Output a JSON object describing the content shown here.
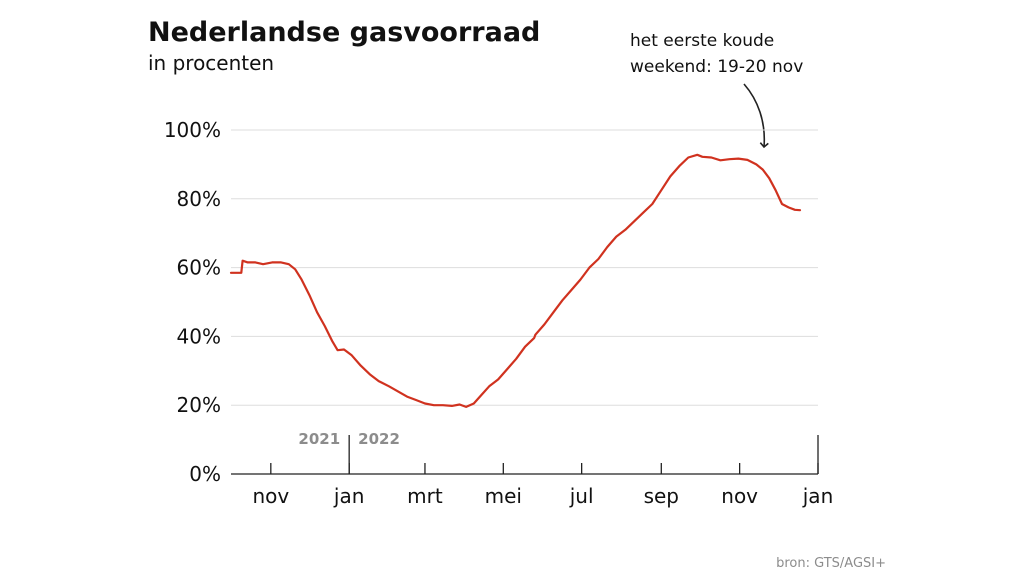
{
  "chart_data": {
    "type": "line",
    "title": "Nederlandse gasvoorraad",
    "subtitle": "in procenten",
    "annotation": {
      "lines": [
        "het eerste koude",
        "weekend: 19-20 nov"
      ],
      "target_x": "2022-11-19"
    },
    "source": "bron: GTS/AGSI+",
    "year_labels": {
      "left": "2021",
      "right": "2022"
    },
    "yticks": [
      {
        "value": 0,
        "label": "0%"
      },
      {
        "value": 20,
        "label": "20%"
      },
      {
        "value": 40,
        "label": "40%"
      },
      {
        "value": 60,
        "label": "60%"
      },
      {
        "value": 80,
        "label": "80%"
      },
      {
        "value": 100,
        "label": "100%"
      }
    ],
    "xticks": [
      {
        "date": "2021-11-01",
        "label": "nov"
      },
      {
        "date": "2022-01-01",
        "label": "jan"
      },
      {
        "date": "2022-03-01",
        "label": "mrt"
      },
      {
        "date": "2022-05-01",
        "label": "mei"
      },
      {
        "date": "2022-07-01",
        "label": "jul"
      },
      {
        "date": "2022-09-01",
        "label": "sep"
      },
      {
        "date": "2022-11-01",
        "label": "nov"
      },
      {
        "date": "2023-01-01",
        "label": "jan"
      }
    ],
    "xlim": [
      "2021-10-01",
      "2023-01-01"
    ],
    "ylim": [
      0,
      100
    ],
    "grid": true,
    "series": [
      {
        "color": "#d0321f",
        "points": [
          [
            "2021-10-01",
            58.5
          ],
          [
            "2021-10-09",
            58.5
          ],
          [
            "2021-10-10",
            62
          ],
          [
            "2021-10-14",
            61.5
          ],
          [
            "2021-10-20",
            61.5
          ],
          [
            "2021-10-26",
            61
          ],
          [
            "2021-11-02",
            61.5
          ],
          [
            "2021-11-09",
            61.5
          ],
          [
            "2021-11-15",
            61
          ],
          [
            "2021-11-20",
            59.5
          ],
          [
            "2021-11-25",
            56.5
          ],
          [
            "2021-12-01",
            52
          ],
          [
            "2021-12-07",
            47
          ],
          [
            "2021-12-13",
            43
          ],
          [
            "2021-12-19",
            38.5
          ],
          [
            "2021-12-23",
            36
          ],
          [
            "2021-12-28",
            36.2
          ],
          [
            "2022-01-03",
            34.5
          ],
          [
            "2022-01-10",
            31.5
          ],
          [
            "2022-01-17",
            29
          ],
          [
            "2022-01-24",
            27
          ],
          [
            "2022-02-01",
            25.5
          ],
          [
            "2022-02-08",
            24
          ],
          [
            "2022-02-15",
            22.5
          ],
          [
            "2022-02-22",
            21.5
          ],
          [
            "2022-03-01",
            20.5
          ],
          [
            "2022-03-08",
            20
          ],
          [
            "2022-03-15",
            20
          ],
          [
            "2022-03-22",
            19.8
          ],
          [
            "2022-03-28",
            20.2
          ],
          [
            "2022-04-02",
            19.5
          ],
          [
            "2022-04-08",
            20.5
          ],
          [
            "2022-04-14",
            23
          ],
          [
            "2022-04-20",
            25.5
          ],
          [
            "2022-04-27",
            27.5
          ],
          [
            "2022-05-04",
            30.5
          ],
          [
            "2022-05-11",
            33.5
          ],
          [
            "2022-05-18",
            37
          ],
          [
            "2022-05-25",
            39.5
          ],
          [
            "2022-05-26",
            40.5
          ],
          [
            "2022-06-02",
            43.5
          ],
          [
            "2022-06-09",
            47
          ],
          [
            "2022-06-16",
            50.5
          ],
          [
            "2022-06-23",
            53.5
          ],
          [
            "2022-06-30",
            56.5
          ],
          [
            "2022-07-07",
            60
          ],
          [
            "2022-07-14",
            62.5
          ],
          [
            "2022-07-21",
            66
          ],
          [
            "2022-07-28",
            69
          ],
          [
            "2022-08-04",
            71
          ],
          [
            "2022-08-11",
            73.5
          ],
          [
            "2022-08-18",
            76
          ],
          [
            "2022-08-25",
            78.5
          ],
          [
            "2022-09-01",
            82.5
          ],
          [
            "2022-09-08",
            86.5
          ],
          [
            "2022-09-15",
            89.5
          ],
          [
            "2022-09-22",
            92
          ],
          [
            "2022-09-29",
            92.8
          ],
          [
            "2022-10-03",
            92.2
          ],
          [
            "2022-10-10",
            92
          ],
          [
            "2022-10-17",
            91.2
          ],
          [
            "2022-10-24",
            91.5
          ],
          [
            "2022-10-31",
            91.7
          ],
          [
            "2022-11-07",
            91.3
          ],
          [
            "2022-11-14",
            90
          ],
          [
            "2022-11-19",
            88.5
          ],
          [
            "2022-11-24",
            86
          ],
          [
            "2022-11-29",
            82.5
          ],
          [
            "2022-12-04",
            78.5
          ],
          [
            "2022-12-09",
            77.5
          ],
          [
            "2022-12-14",
            76.8
          ],
          [
            "2022-12-18",
            76.7
          ]
        ]
      }
    ]
  }
}
